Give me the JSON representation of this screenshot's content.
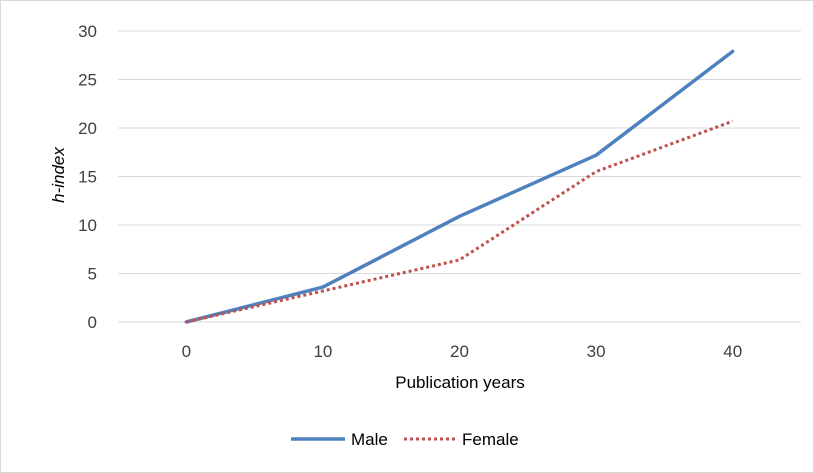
{
  "chart_data": {
    "type": "line",
    "title": "",
    "xlabel": "Publication years",
    "ylabel": "h-index",
    "x": [
      0,
      10,
      20,
      30,
      40
    ],
    "xticks": [
      "0",
      "10",
      "20",
      "30",
      "40"
    ],
    "yticks": [
      "0",
      "5",
      "10",
      "15",
      "20",
      "25",
      "30"
    ],
    "ylim": [
      0,
      30
    ],
    "grid": "horizontal",
    "legend_position": "bottom",
    "series": [
      {
        "name": "Male",
        "values": [
          0,
          3.6,
          10.9,
          17.2,
          27.9
        ],
        "color": "#4f81bd",
        "style": "solid"
      },
      {
        "name": "Female",
        "values": [
          0,
          3.2,
          6.4,
          15.5,
          20.7
        ],
        "color": "#c0504d",
        "style": "dotted"
      }
    ]
  }
}
